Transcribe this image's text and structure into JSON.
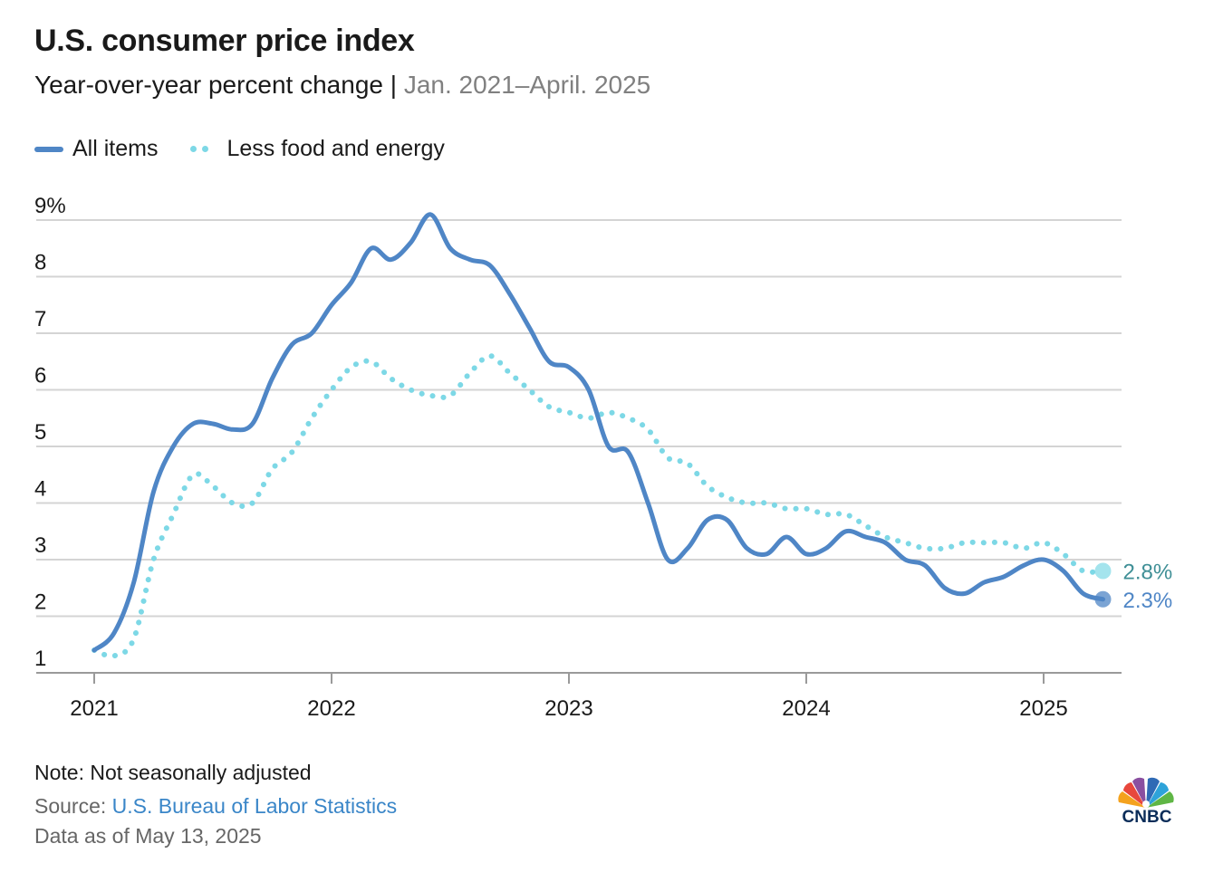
{
  "header": {
    "title": "U.S. consumer price index",
    "subtitle_main": "Year-over-year percent change |",
    "subtitle_range": "Jan. 2021–April. 2025"
  },
  "legend": {
    "all_items": "All items",
    "core": "Less food and energy"
  },
  "footer": {
    "note": "Note: Not seasonally adjusted",
    "source_prefix": "Source:",
    "source_link": "U.S. Bureau of Labor Statistics",
    "data_as_of": "Data as of May 13, 2025"
  },
  "brand": {
    "logo_text": "CNBC",
    "logo_icon": "peacock-icon"
  },
  "colors": {
    "all_items": "#4f86c6",
    "core": "#7dd8e6",
    "grid": "#d4d4d4",
    "axis": "#9a9a9a",
    "label_all": "#4f86c6",
    "label_core": "#3f8f96"
  },
  "chart_data": {
    "type": "line",
    "ylim": [
      1,
      9
    ],
    "yticks": [
      1,
      2,
      3,
      4,
      5,
      6,
      7,
      8,
      9
    ],
    "ytick_labels": [
      "1",
      "2",
      "3",
      "4",
      "5",
      "6",
      "7",
      "8",
      "9%"
    ],
    "xticks": [
      2021,
      2022,
      2023,
      2024,
      2025
    ],
    "xtick_labels": [
      "2021",
      "2022",
      "2023",
      "2024",
      "2025"
    ],
    "x_start": "2021-01",
    "x_end": "2025-04",
    "grid": true,
    "legend_position": "top-left",
    "series": [
      {
        "name": "All items",
        "style": "solid",
        "end_label": "2.3%",
        "values": [
          1.4,
          1.7,
          2.6,
          4.2,
          5.0,
          5.4,
          5.4,
          5.3,
          5.4,
          6.2,
          6.8,
          7.0,
          7.5,
          7.9,
          8.5,
          8.3,
          8.6,
          9.1,
          8.5,
          8.3,
          8.2,
          7.7,
          7.1,
          6.5,
          6.4,
          6.0,
          5.0,
          4.9,
          4.0,
          3.0,
          3.2,
          3.7,
          3.7,
          3.2,
          3.1,
          3.4,
          3.1,
          3.2,
          3.5,
          3.4,
          3.3,
          3.0,
          2.9,
          2.5,
          2.4,
          2.6,
          2.7,
          2.9,
          3.0,
          2.8,
          2.4,
          2.3
        ]
      },
      {
        "name": "Less food and energy",
        "style": "dotted",
        "end_label": "2.8%",
        "values": [
          1.4,
          1.3,
          1.6,
          3.0,
          3.8,
          4.5,
          4.3,
          4.0,
          4.0,
          4.6,
          4.9,
          5.5,
          6.0,
          6.4,
          6.5,
          6.2,
          6.0,
          5.9,
          5.9,
          6.3,
          6.6,
          6.3,
          6.0,
          5.7,
          5.6,
          5.5,
          5.6,
          5.5,
          5.3,
          4.8,
          4.7,
          4.3,
          4.1,
          4.0,
          4.0,
          3.9,
          3.9,
          3.8,
          3.8,
          3.6,
          3.4,
          3.3,
          3.2,
          3.2,
          3.3,
          3.3,
          3.3,
          3.2,
          3.3,
          3.1,
          2.8,
          2.8
        ]
      }
    ]
  }
}
